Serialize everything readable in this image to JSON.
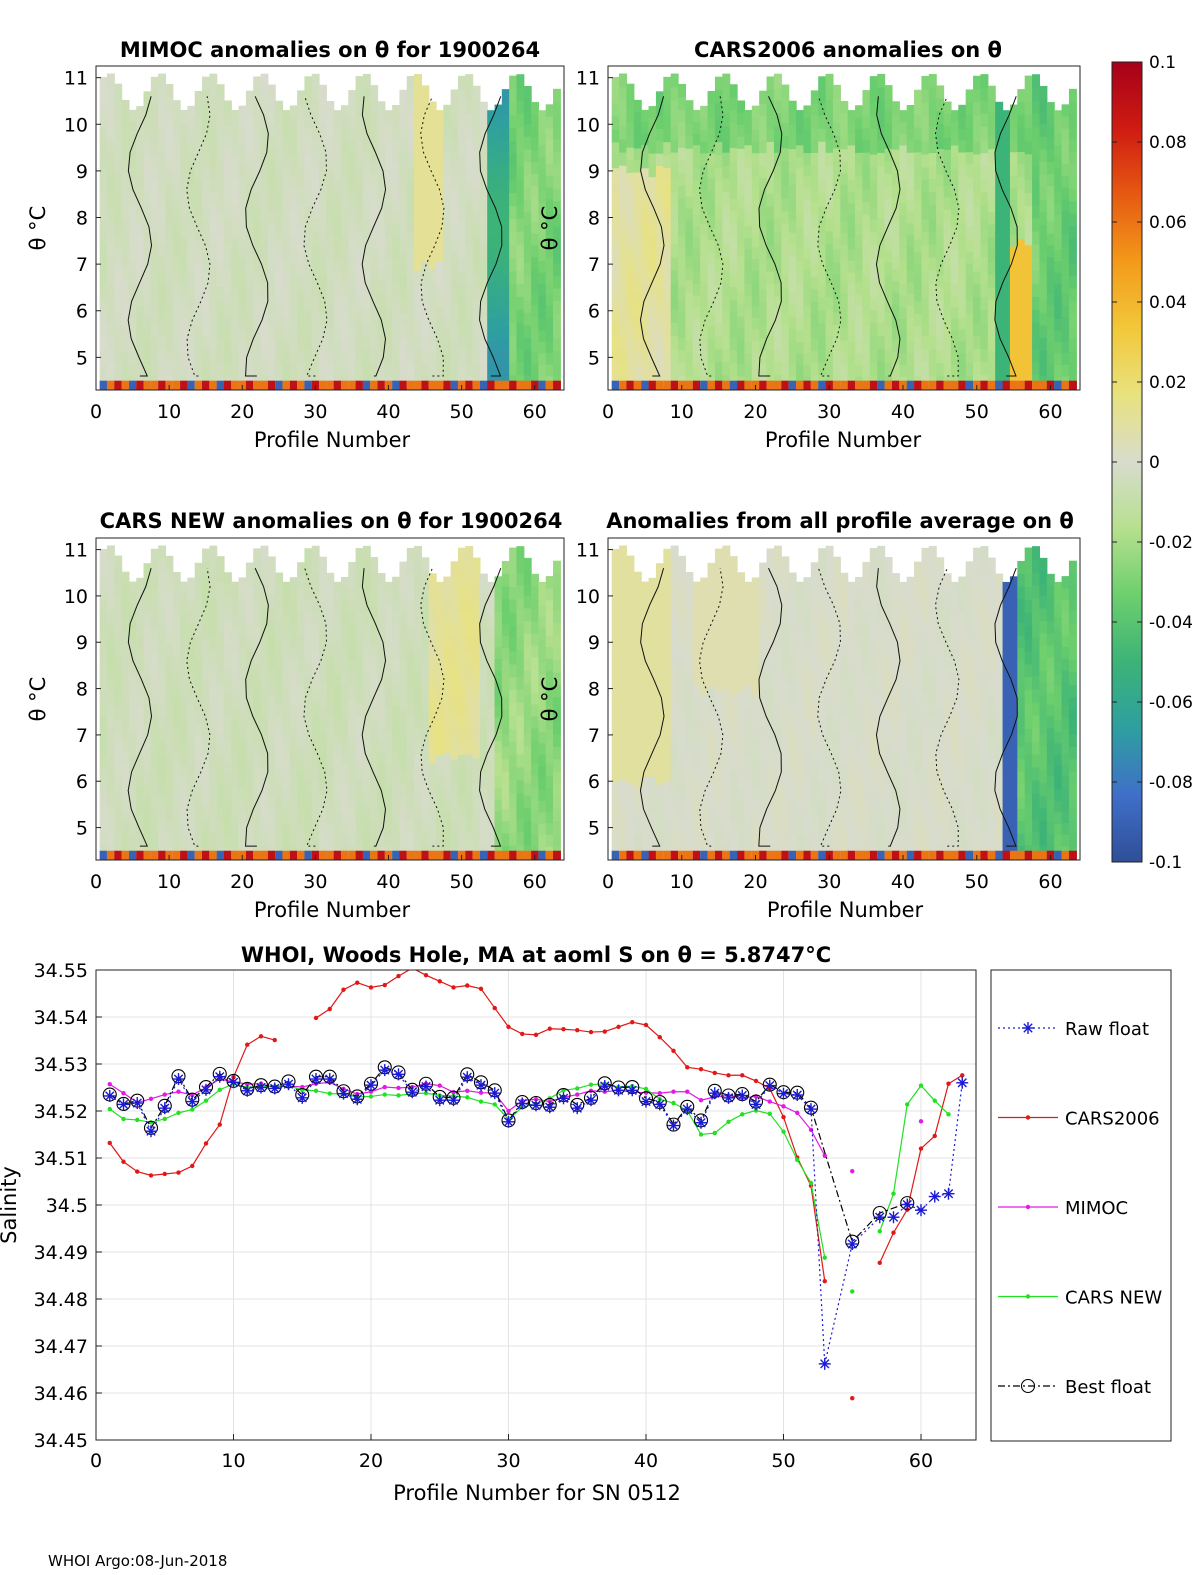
{
  "footer": "WHOI Argo:08-Jun-2018",
  "colorbar": {
    "min": -0.1,
    "max": 0.1,
    "ticks": [
      "0.1",
      "0.08",
      "0.06",
      "0.04",
      "0.02",
      "0",
      "-0.02",
      "-0.04",
      "-0.06",
      "-0.08",
      "-0.1"
    ],
    "colors": [
      "#2f4f98",
      "#3f6fc9",
      "#2e9fa0",
      "#3cb377",
      "#6dcf6d",
      "#b6e08e",
      "#d8dccd",
      "#e8e27f",
      "#f2c83a",
      "#f39a1a",
      "#e65a12",
      "#cf1b12",
      "#a6001a"
    ]
  },
  "heatmaps": [
    {
      "title": "MIMOC anomalies on θ  for 1900264",
      "xlabel": "Profile Number",
      "ylabel": "θ °C",
      "xticks": [
        "0",
        "10",
        "20",
        "30",
        "40",
        "50",
        "60"
      ],
      "yticks": [
        "5",
        "6",
        "7",
        "8",
        "9",
        "10",
        "11"
      ]
    },
    {
      "title": "CARS2006 anomalies on θ",
      "xlabel": "Profile Number",
      "ylabel": "θ °C",
      "xticks": [
        "0",
        "10",
        "20",
        "30",
        "40",
        "50",
        "60"
      ],
      "yticks": [
        "5",
        "6",
        "7",
        "8",
        "9",
        "10",
        "11"
      ]
    },
    {
      "title": "CARS NEW anomalies on θ for 1900264",
      "xlabel": "Profile Number",
      "ylabel": "θ °C",
      "xticks": [
        "0",
        "10",
        "20",
        "30",
        "40",
        "50",
        "60"
      ],
      "yticks": [
        "5",
        "6",
        "7",
        "8",
        "9",
        "10",
        "11"
      ]
    },
    {
      "title": "Anomalies from all profile average on θ",
      "xlabel": "Profile Number",
      "ylabel": "θ °C",
      "xticks": [
        "0",
        "10",
        "20",
        "30",
        "40",
        "50",
        "60"
      ],
      "yticks": [
        "5",
        "6",
        "7",
        "8",
        "9",
        "10",
        "11"
      ]
    }
  ],
  "chart_data": {
    "type": "line",
    "title": "WHOI, Woods Hole, MA at aoml S on θ = 5.8747°C",
    "xlabel": "Profile Number for SN 0512",
    "ylabel": "Salinity",
    "xlim": [
      0,
      64
    ],
    "ylim": [
      34.45,
      34.55
    ],
    "xticks": [
      0,
      10,
      20,
      30,
      40,
      50,
      60
    ],
    "yticks": [
      34.45,
      34.46,
      34.47,
      34.48,
      34.49,
      34.5,
      34.51,
      34.52,
      34.53,
      34.54,
      34.55
    ],
    "ytick_labels": [
      "34.45",
      "34.46",
      "34.47",
      "34.48",
      "34.49",
      "34.5",
      "34.51",
      "34.52",
      "34.53",
      "34.54",
      "34.55"
    ],
    "x": [
      1,
      2,
      3,
      4,
      5,
      6,
      7,
      8,
      9,
      10,
      11,
      12,
      13,
      14,
      15,
      16,
      17,
      18,
      19,
      20,
      21,
      22,
      23,
      24,
      25,
      26,
      27,
      28,
      29,
      30,
      31,
      32,
      33,
      34,
      35,
      36,
      37,
      38,
      39,
      40,
      41,
      42,
      43,
      44,
      45,
      46,
      47,
      48,
      49,
      50,
      51,
      52,
      53,
      54,
      55,
      56,
      57,
      58,
      59,
      60,
      61,
      62,
      63
    ],
    "series": [
      {
        "name": "Raw float",
        "color": "#1a1ad6",
        "style": "dotted",
        "marker": "asterisk",
        "values": [
          34.5232,
          34.5214,
          34.5217,
          34.5157,
          34.5206,
          34.5268,
          34.522,
          34.5245,
          34.5273,
          34.5261,
          34.5243,
          34.525,
          34.5248,
          34.5257,
          34.5228,
          34.5268,
          34.5268,
          34.5237,
          34.5225,
          34.5255,
          34.5287,
          34.5278,
          34.524,
          34.5252,
          34.5223,
          34.5223,
          34.5272,
          34.5255,
          34.5238,
          34.5177,
          34.5216,
          34.5212,
          34.5208,
          34.5227,
          34.5206,
          34.5223,
          34.5253,
          34.5244,
          34.5244,
          34.522,
          34.5214,
          34.5169,
          34.5204,
          34.5175,
          34.5238,
          34.5228,
          34.5233,
          34.5214,
          34.5254,
          34.5237,
          34.5234,
          34.5204,
          34.4662,
          null,
          34.4917,
          null,
          34.4974,
          34.4974,
          34.5001,
          34.4989,
          34.5018,
          34.5024,
          34.526
        ]
      },
      {
        "name": "CARS2006",
        "color": "#e01818",
        "style": "solid",
        "marker": "dot",
        "values": [
          34.5132,
          34.5092,
          34.5071,
          34.5063,
          34.5066,
          34.5069,
          34.5083,
          34.5131,
          34.5171,
          34.5272,
          34.5341,
          34.5359,
          34.5351,
          null,
          null,
          34.5398,
          34.5417,
          34.5458,
          34.5473,
          34.5463,
          34.5468,
          34.5487,
          34.5504,
          34.5489,
          34.5476,
          34.5463,
          34.5467,
          34.546,
          34.5419,
          34.5379,
          34.5364,
          34.5362,
          34.5375,
          34.5374,
          34.5372,
          34.5368,
          34.5369,
          34.5379,
          34.5389,
          34.5383,
          34.5357,
          34.5328,
          34.5293,
          34.5289,
          34.5281,
          34.5276,
          34.5276,
          34.5264,
          34.5248,
          34.5187,
          34.5101,
          34.5041,
          34.4838,
          null,
          34.4589,
          null,
          34.4877,
          34.4941,
          34.499,
          34.512,
          34.5147,
          34.5258,
          34.5276
        ]
      },
      {
        "name": "MIMOC",
        "color": "#e21ae2",
        "style": "solid",
        "marker": "dot",
        "values": [
          34.5257,
          34.5238,
          34.5218,
          34.5226,
          34.5235,
          34.5241,
          34.5234,
          34.525,
          34.5268,
          34.5262,
          34.5257,
          34.5258,
          34.525,
          34.5253,
          34.5251,
          34.5258,
          34.5261,
          34.5247,
          34.5236,
          34.5241,
          34.5251,
          34.5249,
          34.5251,
          34.5258,
          34.5254,
          34.524,
          34.5243,
          34.5239,
          34.5238,
          34.52,
          34.5222,
          34.5225,
          34.522,
          34.5229,
          34.5235,
          34.5243,
          34.5241,
          34.5244,
          34.524,
          34.5239,
          34.5238,
          34.5241,
          34.5241,
          34.5223,
          34.523,
          34.5233,
          34.5228,
          34.5231,
          34.522,
          34.521,
          34.5196,
          34.516,
          34.5105,
          null,
          34.5072,
          null,
          null,
          null,
          null,
          34.5178,
          null,
          null,
          null
        ]
      },
      {
        "name": "CARS NEW",
        "color": "#22e022",
        "style": "solid",
        "marker": "dot",
        "values": [
          34.5204,
          34.5183,
          34.5181,
          34.5176,
          34.5183,
          34.5196,
          34.5203,
          34.5222,
          34.5245,
          34.5258,
          34.525,
          34.5253,
          34.5253,
          34.5253,
          34.5245,
          34.5243,
          34.5237,
          34.5236,
          34.523,
          34.5231,
          34.5235,
          34.5233,
          34.5237,
          34.5238,
          34.5233,
          34.5232,
          34.5229,
          34.522,
          34.5214,
          34.5182,
          34.5208,
          34.5215,
          34.5227,
          34.5244,
          34.5248,
          34.5256,
          34.5258,
          34.5251,
          34.5253,
          34.5247,
          34.5225,
          34.5217,
          34.5201,
          34.515,
          34.5153,
          34.5177,
          34.5193,
          34.5201,
          34.5194,
          34.5156,
          34.5096,
          34.5047,
          34.4888,
          null,
          34.4816,
          null,
          34.4944,
          34.5024,
          34.5214,
          34.5254,
          34.5222,
          34.5193,
          null
        ]
      },
      {
        "name": "Best float",
        "color": "#000000",
        "style": "dashdot",
        "marker": "circle",
        "values": [
          34.5235,
          34.5215,
          34.5222,
          34.5164,
          34.5211,
          34.5274,
          34.5224,
          34.5251,
          34.5279,
          34.5264,
          34.5247,
          34.5255,
          34.5252,
          34.5263,
          34.5234,
          34.5273,
          34.5273,
          34.5242,
          34.5231,
          34.5258,
          34.5293,
          34.5282,
          34.5245,
          34.5258,
          34.523,
          34.5228,
          34.5278,
          34.5261,
          34.5244,
          34.518,
          34.5219,
          34.5217,
          34.5213,
          34.5234,
          34.5213,
          34.5228,
          34.5259,
          34.525,
          34.5251,
          34.5227,
          34.5219,
          34.5171,
          34.5209,
          34.518,
          34.5243,
          34.5233,
          34.5236,
          34.522,
          34.5256,
          34.524,
          34.5239,
          34.5207,
          null,
          null,
          34.4922,
          null,
          34.4983,
          null,
          34.5004,
          null,
          null,
          null,
          null
        ]
      }
    ]
  }
}
